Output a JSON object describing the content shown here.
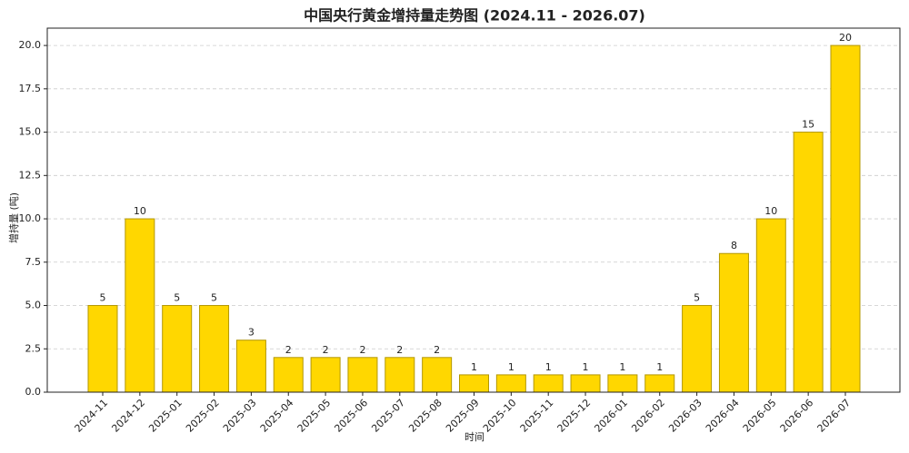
{
  "chart_data": {
    "type": "bar",
    "title": "中国央行黄金增持量走势图 (2024.11 - 2026.07)",
    "x_label": "时间",
    "y_label": "增持量 (吨)",
    "categories": [
      "2024-11",
      "2024-12",
      "2025-01",
      "2025-02",
      "2025-03",
      "2025-04",
      "2025-05",
      "2025-06",
      "2025-07",
      "2025-08",
      "2025-09",
      "2025-10",
      "2025-11",
      "2025-12",
      "2026-01",
      "2026-02",
      "2026-03",
      "2026-04",
      "2026-05",
      "2026-06",
      "2026-07"
    ],
    "values": [
      5,
      10,
      5,
      5,
      3,
      2,
      2,
      2,
      2,
      2,
      1,
      1,
      1,
      1,
      1,
      1,
      5,
      8,
      10,
      15,
      20
    ],
    "color": "#FFD700",
    "edge_color": "#B39700",
    "ylim": [
      0,
      21
    ],
    "yticks": [
      {
        "value": 0,
        "label": "0.0"
      },
      2.5,
      {
        "value": 5,
        "label": "5.0"
      },
      7.5,
      {
        "value": 10,
        "label": "10.0"
      },
      12.5,
      {
        "value": 15,
        "label": "15.0"
      },
      17.5,
      {
        "value": 20,
        "label": "20.0"
      }
    ],
    "grid": true
  }
}
